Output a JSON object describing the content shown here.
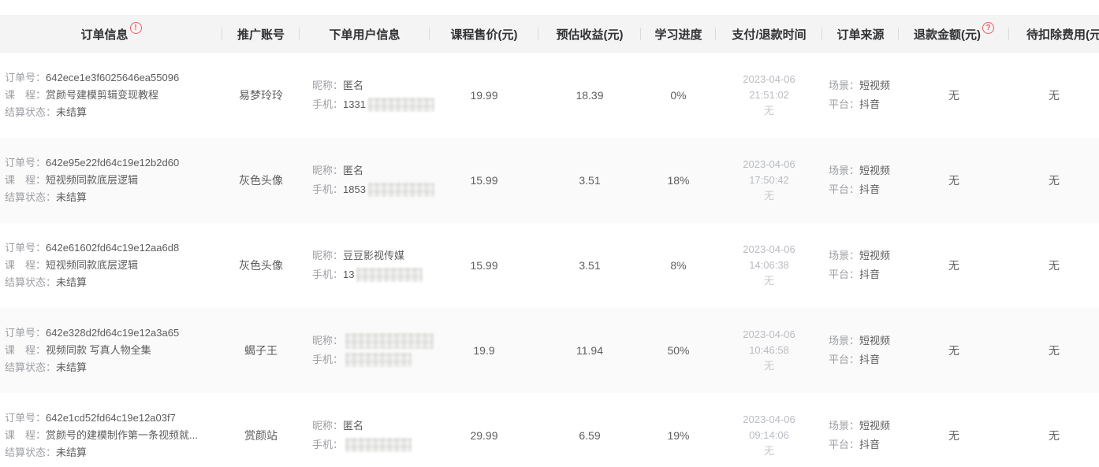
{
  "header": {
    "columns": [
      {
        "label": "订单信息"
      },
      {
        "label": "推广账号"
      },
      {
        "label": "下单用户信息"
      },
      {
        "label": "课程售价(元)"
      },
      {
        "label": "预估收益(元)"
      },
      {
        "label": "学习进度"
      },
      {
        "label": "支付/退款时间"
      },
      {
        "label": "订单来源"
      },
      {
        "label": "退款金额(元)"
      },
      {
        "label": "待扣除费用(元)"
      }
    ],
    "exclamation_icon": "!",
    "question_icon": "?",
    "accent_red": "#f05b5b"
  },
  "labels": {
    "order_no": "订单号：",
    "course": "课　程：",
    "settle": "结算状态：",
    "nickname": "昵称：",
    "phone": "手机：",
    "scene": "场景：",
    "platform": "平台："
  },
  "rows": [
    {
      "order_no": "642ece1e3f6025646ea55096",
      "course": "赏颜号建模剪辑变现教程",
      "settle": "未结算",
      "promoter": "易梦玲玲",
      "nickname": "匿名",
      "nick_masked": false,
      "phone_prefix": "1331",
      "price": "19.99",
      "revenue": "18.39",
      "progress": "0%",
      "pay_date": "2023-04-06",
      "pay_time": "21:51:02",
      "refund_time": "无",
      "scene": "短视频",
      "platform": "抖音",
      "refund": "无",
      "fee": "无"
    },
    {
      "order_no": "642e95e22fd64c19e12b2d60",
      "course": "短视频同款底层逻辑",
      "settle": "未结算",
      "promoter": "灰色头像",
      "nickname": "匿名",
      "nick_masked": false,
      "phone_prefix": "1853",
      "price": "15.99",
      "revenue": "3.51",
      "progress": "18%",
      "pay_date": "2023-04-06",
      "pay_time": "17:50:42",
      "refund_time": "无",
      "scene": "短视频",
      "platform": "抖音",
      "refund": "无",
      "fee": "无"
    },
    {
      "order_no": "642e61602fd64c19e12aa6d8",
      "course": "短视频同款底层逻辑",
      "settle": "未结算",
      "promoter": "灰色头像",
      "nickname": "豆豆影视传媒",
      "nick_masked": false,
      "phone_prefix": "13",
      "price": "15.99",
      "revenue": "3.51",
      "progress": "8%",
      "pay_date": "2023-04-06",
      "pay_time": "14:06:38",
      "refund_time": "无",
      "scene": "短视频",
      "platform": "抖音",
      "refund": "无",
      "fee": "无"
    },
    {
      "order_no": "642e328d2fd64c19e12a3a65",
      "course": "视频同款 写真人物全集",
      "settle": "未结算",
      "promoter": "蝎子王",
      "nickname": "",
      "nick_masked": true,
      "phone_prefix": "",
      "price": "19.9",
      "revenue": "11.94",
      "progress": "50%",
      "pay_date": "2023-04-06",
      "pay_time": "10:46:58",
      "refund_time": "无",
      "scene": "短视频",
      "platform": "抖音",
      "refund": "无",
      "fee": "无"
    },
    {
      "order_no": "642e1cd52fd64c19e12a03f7",
      "course": "赏颜号的建模制作第一条视频就...",
      "settle": "未结算",
      "promoter": "赏颜站",
      "nickname": "匿名",
      "nick_masked": false,
      "phone_prefix": "",
      "price": "29.99",
      "revenue": "6.59",
      "progress": "19%",
      "pay_date": "2023-04-06",
      "pay_time": "09:14:06",
      "refund_time": "无",
      "scene": "短视频",
      "platform": "抖音",
      "refund": "无",
      "fee": "无"
    }
  ]
}
